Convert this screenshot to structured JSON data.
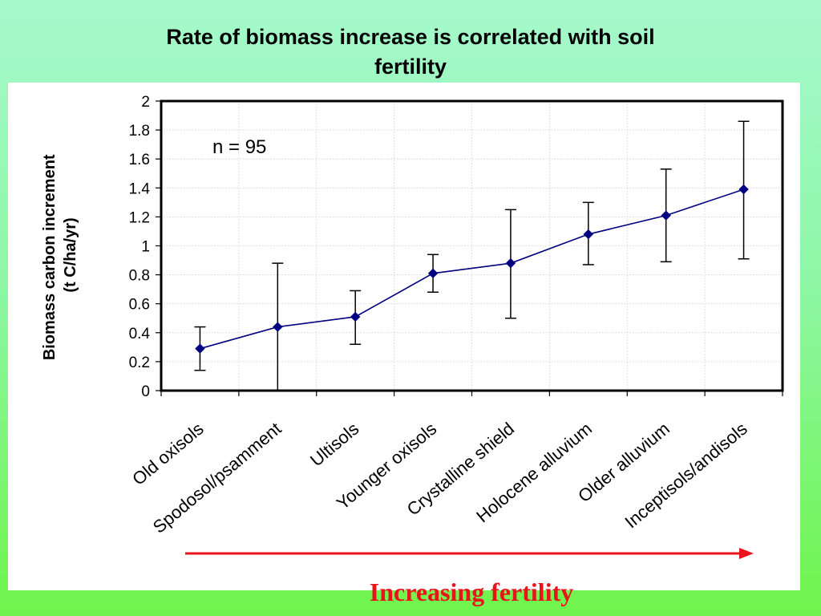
{
  "slide": {
    "title_line1": "Rate of biomass increase is correlated with soil",
    "title_line2": "fertility",
    "arrow_caption": "Increasing fertility"
  },
  "colors": {
    "background_top": "#a6f9cd",
    "background_bottom": "#6ff44c",
    "series_line": "#000080",
    "marker": "#000080",
    "arrow": "#e8141a",
    "caption": "#e8141a"
  },
  "chart_data": {
    "type": "line",
    "title": "",
    "ylabel_line1": "Biomass carbon increment",
    "ylabel_line2": "(t C/ha/yr)",
    "xlabel": "",
    "annotation": "n = 95",
    "ylim": [
      0,
      2
    ],
    "yticks": [
      "0",
      "0.2",
      "0.4",
      "0.6",
      "0.8",
      "1",
      "1.2",
      "1.4",
      "1.6",
      "1.8",
      "2"
    ],
    "grid": true,
    "legend": "none",
    "error_bars": true,
    "categories": [
      "Old oxisols",
      "Spodosol/psamment",
      "Ultisols",
      "Younger oxisols",
      "Crystalline shield",
      "Holocene alluvium",
      "Older alluvium",
      "Inceptisols/andisols"
    ],
    "series": [
      {
        "values": [
          0.29,
          0.44,
          0.51,
          0.81,
          0.88,
          1.08,
          1.21,
          1.39
        ],
        "error_low": [
          0.14,
          0.0,
          0.32,
          0.68,
          0.5,
          0.87,
          0.89,
          0.91
        ],
        "error_high": [
          0.44,
          0.88,
          0.69,
          0.94,
          1.25,
          1.3,
          1.53,
          1.86
        ]
      }
    ]
  }
}
